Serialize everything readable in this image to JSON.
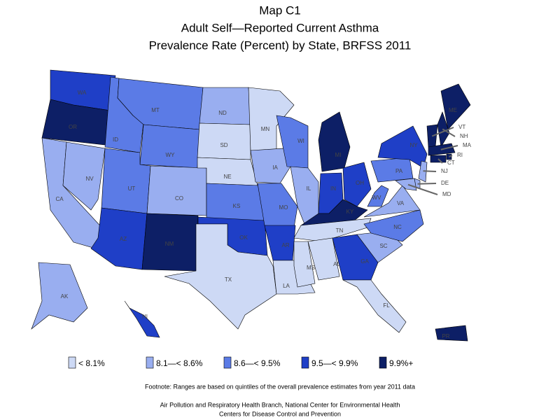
{
  "title": [
    "Map C1",
    "Adult Self—Reported Current Asthma",
    "Prevalence Rate (Percent) by State, BRFSS 2011"
  ],
  "legend": [
    {
      "label": "< 8.1%",
      "color": "#cdd9f5"
    },
    {
      "label": "8.1—< 8.6%",
      "color": "#99aef0"
    },
    {
      "label": "8.6—< 9.5%",
      "color": "#5b7be6"
    },
    {
      "label": "9.5—< 9.9%",
      "color": "#1f3fc7"
    },
    {
      "label": "9.9%+",
      "color": "#0d1f66"
    }
  ],
  "states": [
    {
      "label": "WA",
      "color": "#1f3fc7"
    },
    {
      "label": "OR",
      "color": "#0d1f66"
    },
    {
      "label": "CA",
      "color": "#99aef0"
    },
    {
      "label": "NV",
      "color": "#99aef0"
    },
    {
      "label": "ID",
      "color": "#5b7be6"
    },
    {
      "label": "MT",
      "color": "#5b7be6"
    },
    {
      "label": "WY",
      "color": "#5b7be6"
    },
    {
      "label": "UT",
      "color": "#5b7be6"
    },
    {
      "label": "CO",
      "color": "#99aef0"
    },
    {
      "label": "AZ",
      "color": "#1f3fc7"
    },
    {
      "label": "NM",
      "color": "#0d1f66"
    },
    {
      "label": "ND",
      "color": "#99aef0"
    },
    {
      "label": "SD",
      "color": "#cdd9f5"
    },
    {
      "label": "NE",
      "color": "#cdd9f5"
    },
    {
      "label": "KS",
      "color": "#5b7be6"
    },
    {
      "label": "OK",
      "color": "#1f3fc7"
    },
    {
      "label": "TX",
      "color": "#cdd9f5"
    },
    {
      "label": "MN",
      "color": "#cdd9f5"
    },
    {
      "label": "IA",
      "color": "#99aef0"
    },
    {
      "label": "MO",
      "color": "#5b7be6"
    },
    {
      "label": "AR",
      "color": "#1f3fc7"
    },
    {
      "label": "LA",
      "color": "#cdd9f5"
    },
    {
      "label": "WI",
      "color": "#5b7be6"
    },
    {
      "label": "IL",
      "color": "#99aef0"
    },
    {
      "label": "MI",
      "color": "#0d1f66"
    },
    {
      "label": "IN",
      "color": "#1f3fc7"
    },
    {
      "label": "OH",
      "color": "#1f3fc7"
    },
    {
      "label": "KY",
      "color": "#0d1f66"
    },
    {
      "label": "TN",
      "color": "#cdd9f5"
    },
    {
      "label": "MS",
      "color": "#cdd9f5"
    },
    {
      "label": "AL",
      "color": "#cdd9f5"
    },
    {
      "label": "GA",
      "color": "#1f3fc7"
    },
    {
      "label": "FL",
      "color": "#cdd9f5"
    },
    {
      "label": "SC",
      "color": "#99aef0"
    },
    {
      "label": "NC",
      "color": "#5b7be6"
    },
    {
      "label": "VA",
      "color": "#99aef0"
    },
    {
      "label": "WV",
      "color": "#5b7be6"
    },
    {
      "label": "PA",
      "color": "#5b7be6"
    },
    {
      "label": "NY",
      "color": "#1f3fc7"
    },
    {
      "label": "ME",
      "color": "#0d1f66"
    },
    {
      "label": "VT",
      "color": "#0d1f66"
    },
    {
      "label": "NH",
      "color": "#0d1f66"
    },
    {
      "label": "MA",
      "color": "#0d1f66"
    },
    {
      "label": "RI",
      "color": "#0d1f66"
    },
    {
      "label": "CT",
      "color": "#0d1f66"
    },
    {
      "label": "NJ",
      "color": "#99aef0"
    },
    {
      "label": "DE",
      "color": "#99aef0"
    },
    {
      "label": "MD",
      "color": "#99aef0"
    },
    {
      "label": "AK",
      "color": "#99aef0"
    },
    {
      "label": "HI",
      "color": "#1f3fc7"
    },
    {
      "label": "PR",
      "color": "#0d1f66"
    }
  ],
  "footnote": "Footnote: Ranges are based on quintiles of the overall prevalence estimates from year 2011 data",
  "source": [
    "Air Pollution and Respiratory Health Branch, National Center for Environmental Health",
    "Centers for Disease Control and Prevention"
  ]
}
